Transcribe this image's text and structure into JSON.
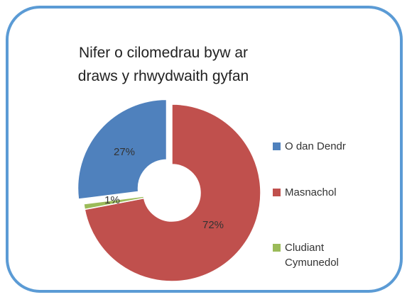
{
  "chart_data": {
    "type": "doughnut",
    "title": "Nifer o cilomedrau byw ar draws y rhwydwaith gyfan",
    "categories": [
      "O dan Dendr",
      "Masnachol",
      "Cludiant Cymunedol"
    ],
    "values": [
      27,
      72,
      1
    ],
    "value_labels": [
      "27%",
      "72%",
      "1%"
    ],
    "colors": [
      "#4f81bd",
      "#c0504d",
      "#9bbb59"
    ],
    "legend": "right"
  }
}
